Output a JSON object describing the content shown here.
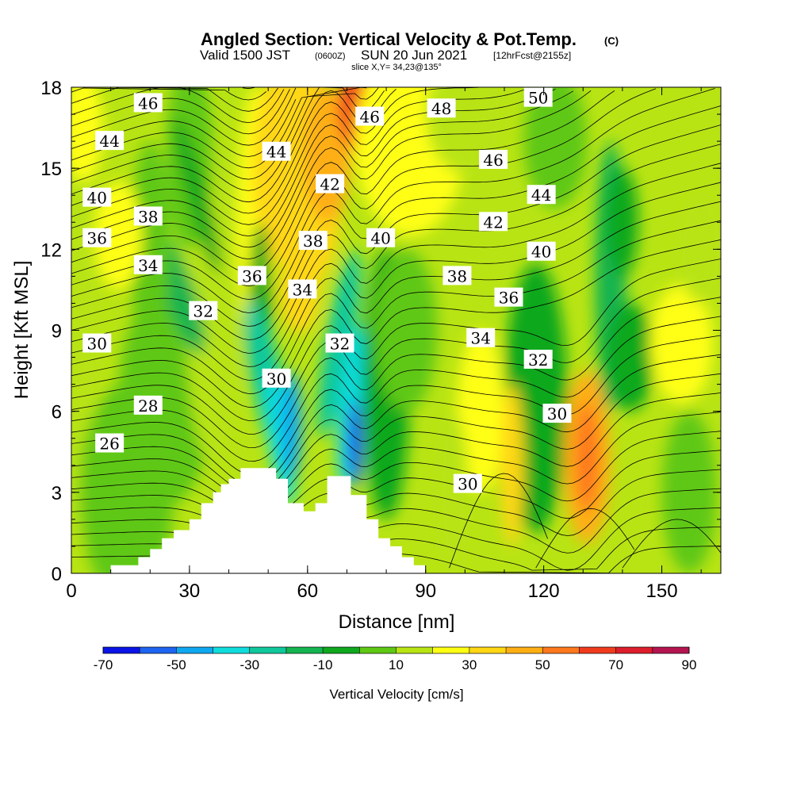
{
  "header": {
    "title": "Angled Section: Vertical Velocity & Pot.Temp.",
    "title_mark": "(C)",
    "valid_prefix": "Valid 1500 JST",
    "valid_utc": "(0600Z)",
    "valid_date": "SUN 20 Jun 2021",
    "forecast": "[12hrFcst@2155z]",
    "slice": "slice X,Y= 34,23@135°"
  },
  "chart_data": {
    "type": "heatmap",
    "xlabel": "Distance [nm]",
    "ylabel": "Height [Kft MSL]",
    "xlim": [
      0,
      165
    ],
    "ylim": [
      0,
      18
    ],
    "xticks": [
      "0",
      "30",
      "60",
      "90",
      "120",
      "150"
    ],
    "yticks": [
      "0",
      "3",
      "6",
      "9",
      "12",
      "15",
      "18"
    ],
    "xtick_values": [
      0,
      30,
      60,
      90,
      120,
      150
    ],
    "ytick_values": [
      0,
      3,
      6,
      9,
      12,
      15,
      18
    ],
    "colorbar": {
      "title": "Vertical Velocity [cm/s]",
      "labels": [
        "-70",
        "-50",
        "-30",
        "-10",
        "10",
        "30",
        "50",
        "70",
        "90"
      ],
      "levels": [
        -70,
        -60,
        -50,
        -40,
        -30,
        -20,
        -10,
        0,
        10,
        20,
        30,
        40,
        50,
        60,
        70,
        80,
        90
      ],
      "colors": [
        "#0a14e6",
        "#1e64f0",
        "#10a8f0",
        "#10dcdc",
        "#10c89c",
        "#14b450",
        "#10a81e",
        "#5fc814",
        "#b8e414",
        "#ffff14",
        "#ffd714",
        "#ffaf14",
        "#ff781e",
        "#f03c1e",
        "#dc1e2d",
        "#b41450",
        "#8c1478",
        "#50148c"
      ]
    },
    "shaded_field": "vertical velocity (cm/s)",
    "contour_field": "potential temperature (C)",
    "contour_labels": [
      {
        "text": "46",
        "x": 19.5,
        "y": 17.4
      },
      {
        "text": "44",
        "x": 9.7,
        "y": 16.0
      },
      {
        "text": "40",
        "x": 6.5,
        "y": 13.9
      },
      {
        "text": "38",
        "x": 19.5,
        "y": 13.2
      },
      {
        "text": "36",
        "x": 6.5,
        "y": 12.4
      },
      {
        "text": "34",
        "x": 19.5,
        "y": 11.4
      },
      {
        "text": "30",
        "x": 6.5,
        "y": 8.5
      },
      {
        "text": "28",
        "x": 19.5,
        "y": 6.2
      },
      {
        "text": "26",
        "x": 9.7,
        "y": 4.8
      },
      {
        "text": "32",
        "x": 33.5,
        "y": 9.7
      },
      {
        "text": "44",
        "x": 52.1,
        "y": 15.6
      },
      {
        "text": "36",
        "x": 45.9,
        "y": 11.0
      },
      {
        "text": "30",
        "x": 52.1,
        "y": 7.2
      },
      {
        "text": "46",
        "x": 75.8,
        "y": 16.9
      },
      {
        "text": "42",
        "x": 65.7,
        "y": 14.4
      },
      {
        "text": "38",
        "x": 61.4,
        "y": 12.3
      },
      {
        "text": "34",
        "x": 58.7,
        "y": 10.5
      },
      {
        "text": "40",
        "x": 78.6,
        "y": 12.4
      },
      {
        "text": "32",
        "x": 68.2,
        "y": 8.5
      },
      {
        "text": "48",
        "x": 94.0,
        "y": 17.2
      },
      {
        "text": "50",
        "x": 118.6,
        "y": 17.6
      },
      {
        "text": "46",
        "x": 107.2,
        "y": 15.3
      },
      {
        "text": "44",
        "x": 119.4,
        "y": 14.0
      },
      {
        "text": "42",
        "x": 107.2,
        "y": 13.0
      },
      {
        "text": "40",
        "x": 119.4,
        "y": 11.9
      },
      {
        "text": "38",
        "x": 98.0,
        "y": 11.0
      },
      {
        "text": "36",
        "x": 111.1,
        "y": 10.2
      },
      {
        "text": "34",
        "x": 104.0,
        "y": 8.7
      },
      {
        "text": "32",
        "x": 118.6,
        "y": 7.9
      },
      {
        "text": "30",
        "x": 123.4,
        "y": 5.9
      },
      {
        "text": "30",
        "x": 100.7,
        "y": 3.3
      }
    ]
  }
}
